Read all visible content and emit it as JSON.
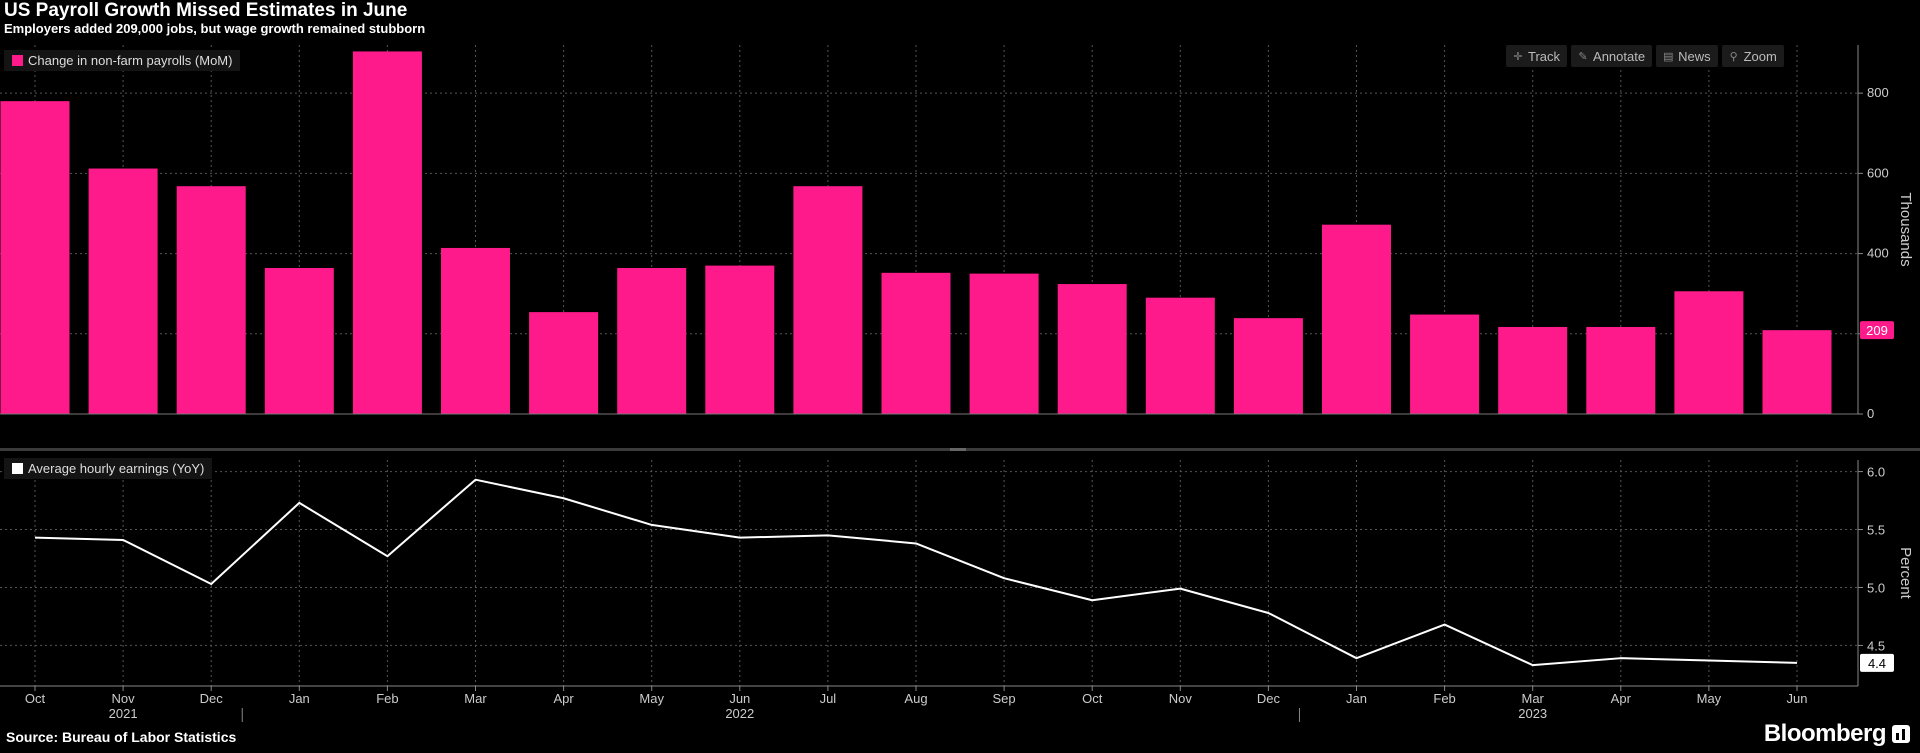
{
  "title": "US Payroll Growth Missed Estimates in June",
  "subtitle": "Employers added 209,000 jobs, but wage growth remained stubborn",
  "source": "Source: Bureau of Labor Statistics",
  "brand": "Bloomberg",
  "toolbar": [
    {
      "name": "track",
      "label": "Track",
      "icon": "crosshair-icon",
      "glyph": "✛"
    },
    {
      "name": "annotate",
      "label": "Annotate",
      "icon": "pencil-icon",
      "glyph": "✎"
    },
    {
      "name": "news",
      "label": "News",
      "icon": "news-icon",
      "glyph": "▤"
    },
    {
      "name": "zoom",
      "label": "Zoom",
      "icon": "magnifier-icon",
      "glyph": "⚲"
    }
  ],
  "colors": {
    "bar": "#ff1a8c",
    "line": "#ffffff",
    "grid": "#555555",
    "axis": "#cccccc"
  },
  "chart_data": [
    {
      "type": "bar",
      "title": "",
      "legend": "Change in non-farm payrolls (MoM)",
      "ylabel": "Thousands",
      "ylim": [
        0,
        920
      ],
      "yticks": [
        0,
        200,
        400,
        600,
        800
      ],
      "categories": [
        "Oct",
        "Nov",
        "Dec",
        "Jan",
        "Feb",
        "Mar",
        "Apr",
        "May",
        "Jun",
        "Jul",
        "Aug",
        "Sep",
        "Oct",
        "Nov",
        "Dec",
        "Jan",
        "Feb",
        "Mar",
        "Apr",
        "May",
        "Jun"
      ],
      "years": [
        {
          "label": "2021",
          "index": 1
        },
        {
          "label": "2022",
          "index": 8
        },
        {
          "label": "2023",
          "index": 17
        }
      ],
      "year_boundaries": [
        3,
        15
      ],
      "values": [
        780,
        612,
        568,
        364,
        904,
        414,
        254,
        364,
        370,
        568,
        352,
        350,
        324,
        290,
        239,
        472,
        248,
        217,
        217,
        306,
        209
      ],
      "last_value_label": "209"
    },
    {
      "type": "line",
      "legend": "Average hourly earnings (YoY)",
      "ylabel": "Percent",
      "ylim": [
        4.15,
        6.1
      ],
      "yticks": [
        4.5,
        5.0,
        5.5,
        6.0
      ],
      "ytick_labels": [
        "4.5",
        "5.0",
        "5.5",
        "6.0"
      ],
      "values": [
        5.43,
        5.41,
        5.03,
        5.73,
        5.27,
        5.93,
        5.77,
        5.54,
        5.43,
        5.45,
        5.38,
        5.08,
        4.89,
        4.99,
        4.78,
        4.39,
        4.68,
        4.33,
        4.39,
        4.37,
        4.35
      ],
      "last_value_label": "4.4"
    }
  ]
}
